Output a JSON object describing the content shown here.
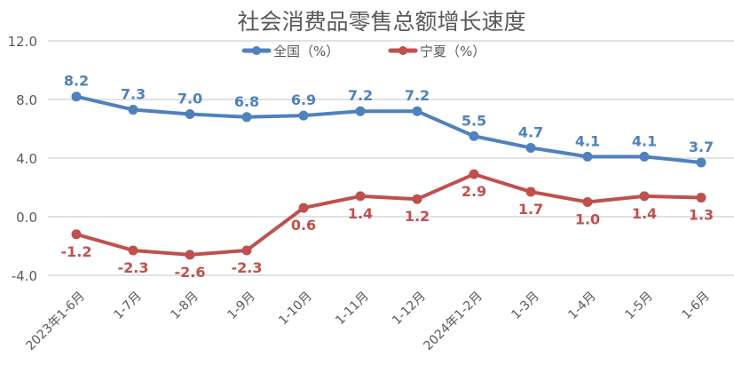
{
  "chart_data": {
    "type": "line",
    "title": "社会消费品零售总额增长速度",
    "categories": [
      "2023年1-6月",
      "1-7月",
      "1-8月",
      "1-9月",
      "1-10月",
      "1-11月",
      "1-12月",
      "2024年1-2月",
      "1-3月",
      "1-4月",
      "1-5月",
      "1-6月"
    ],
    "series": [
      {
        "name": "全国（%）",
        "color": "#4f81bd",
        "label_color": "#4f81bd",
        "values": [
          8.2,
          7.3,
          7.0,
          6.8,
          6.9,
          7.2,
          7.2,
          5.5,
          4.7,
          4.1,
          4.1,
          3.7
        ]
      },
      {
        "name": "宁夏（%）",
        "color": "#c0504d",
        "label_color": "#c0504d",
        "values": [
          -1.2,
          -2.3,
          -2.6,
          -2.3,
          0.6,
          1.4,
          1.2,
          2.9,
          1.7,
          1.0,
          1.4,
          1.3
        ]
      }
    ],
    "yticks": [
      "12.0",
      "8.0",
      "4.0",
      "0.0",
      "-4.0"
    ],
    "ylim": [
      -4,
      12
    ],
    "grid": true,
    "legend": "top-center"
  }
}
